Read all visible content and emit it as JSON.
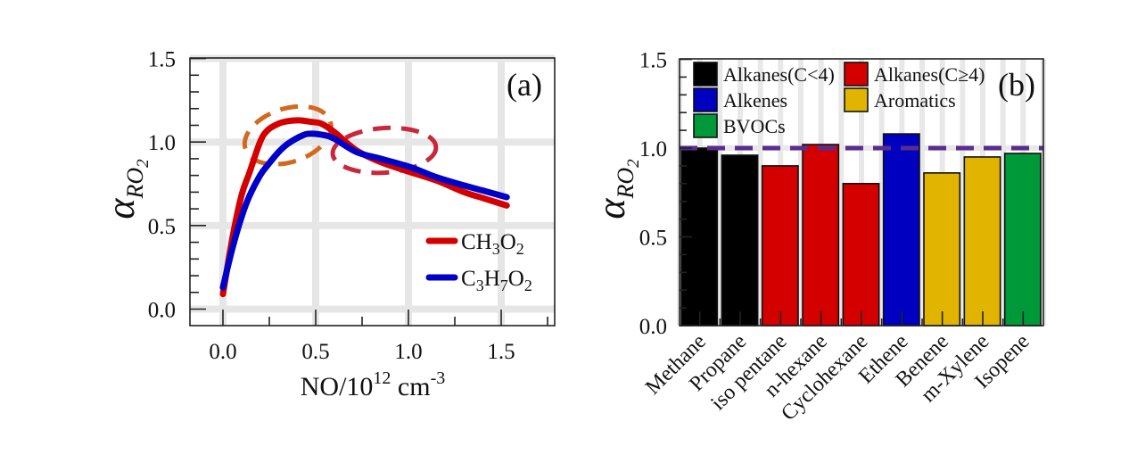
{
  "chart_data": [
    {
      "panel": "(a)",
      "type": "line",
      "title": "",
      "xlabel": "NO/10^12 cm^-3",
      "xlabel_parts": {
        "base": "NO/10",
        "sup1": "12",
        "mid": " cm",
        "sup2": "-3"
      },
      "ylabel": "α_RO2",
      "ylabel_parts": {
        "symbol": "α",
        "sub": "RO",
        "subsub": "2"
      },
      "xlim": [
        -0.18,
        1.8
      ],
      "ylim": [
        -0.1,
        1.5
      ],
      "xticks": [
        0.0,
        0.5,
        1.0,
        1.5
      ],
      "xtick_labels": [
        "0.0",
        "0.5",
        "1.0",
        "1.5"
      ],
      "yticks": [
        0.0,
        0.5,
        1.0,
        1.5
      ],
      "ytick_labels": [
        "0.0",
        "0.5",
        "1.0",
        "1.5"
      ],
      "grid": true,
      "legend_position": "bottom-right",
      "series": [
        {
          "name": "CH3O2",
          "label_parts": [
            {
              "t": "CH"
            },
            {
              "sub": "3"
            },
            {
              "t": "O"
            },
            {
              "sub": "2"
            }
          ],
          "color": "#d40000",
          "x": [
            0.0,
            0.05,
            0.1,
            0.144,
            0.2,
            0.24,
            0.3,
            0.35,
            0.41,
            0.48,
            0.53,
            0.6,
            0.72,
            0.85,
            1.01,
            1.15,
            1.3,
            1.4,
            1.53
          ],
          "y": [
            0.09,
            0.42,
            0.68,
            0.82,
            1.0,
            1.07,
            1.11,
            1.125,
            1.13,
            1.12,
            1.11,
            1.06,
            0.95,
            0.88,
            0.82,
            0.77,
            0.7,
            0.665,
            0.62
          ]
        },
        {
          "name": "C3H7O2",
          "label_parts": [
            {
              "t": "C"
            },
            {
              "sub": "3"
            },
            {
              "t": "H"
            },
            {
              "sub": "7"
            },
            {
              "t": "O"
            },
            {
              "sub": "2"
            }
          ],
          "color": "#0000c8",
          "x": [
            0.0,
            0.05,
            0.1,
            0.144,
            0.2,
            0.24,
            0.3,
            0.35,
            0.43,
            0.48,
            0.55,
            0.6,
            0.72,
            0.85,
            1.01,
            1.15,
            1.3,
            1.4,
            1.53
          ],
          "y": [
            0.13,
            0.36,
            0.55,
            0.68,
            0.8,
            0.86,
            0.94,
            0.99,
            1.04,
            1.05,
            1.04,
            1.02,
            0.94,
            0.9,
            0.85,
            0.79,
            0.74,
            0.71,
            0.67
          ]
        }
      ],
      "annotations": [
        {
          "type": "dashed-ellipse",
          "color": "#d2691e",
          "center": [
            0.35,
            1.04
          ],
          "note": "peak region"
        },
        {
          "type": "dashed-ellipse",
          "color": "#c8283c",
          "center": [
            0.87,
            0.95
          ],
          "note": "crossover region"
        }
      ]
    },
    {
      "panel": "(b)",
      "type": "bar",
      "title": "",
      "xlabel": "",
      "ylabel": "α_RO2",
      "ylabel_parts": {
        "symbol": "α",
        "sub": "RO",
        "subsub": "2"
      },
      "ylim": [
        0.0,
        1.5
      ],
      "yticks": [
        0.0,
        0.5,
        1.0,
        1.5
      ],
      "ytick_labels": [
        "0.0",
        "0.5",
        "1.0",
        "1.5"
      ],
      "grid": true,
      "reference_line": {
        "y": 1.0,
        "style": "dashed",
        "color": "#5b2c8f"
      },
      "categories": [
        "Methane",
        "Propane",
        "iso pentane",
        "n-hexane",
        "Cyclohexane",
        "Ethene",
        "Benene",
        "m-Xylene",
        "Isopene"
      ],
      "values": [
        1.0,
        0.96,
        0.9,
        1.02,
        0.8,
        1.08,
        0.86,
        0.95,
        0.97
      ],
      "groups": [
        "Alkanes(C<4)",
        "Alkanes(C<4)",
        "Alkanes(C≥4)",
        "Alkanes(C≥4)",
        "Alkanes(C≥4)",
        "Alkenes",
        "Aromatics",
        "Aromatics",
        "BVOCs"
      ],
      "legend_position": "top-left",
      "legend": [
        {
          "name": "Alkanes(C<4)",
          "color": "#000000"
        },
        {
          "name": "Alkanes(C≥4)",
          "color": "#d40000"
        },
        {
          "name": "Alkenes",
          "color": "#0000c0"
        },
        {
          "name": "Aromatics",
          "color": "#e0b400"
        },
        {
          "name": "BVOCs",
          "color": "#00993a"
        }
      ]
    }
  ]
}
